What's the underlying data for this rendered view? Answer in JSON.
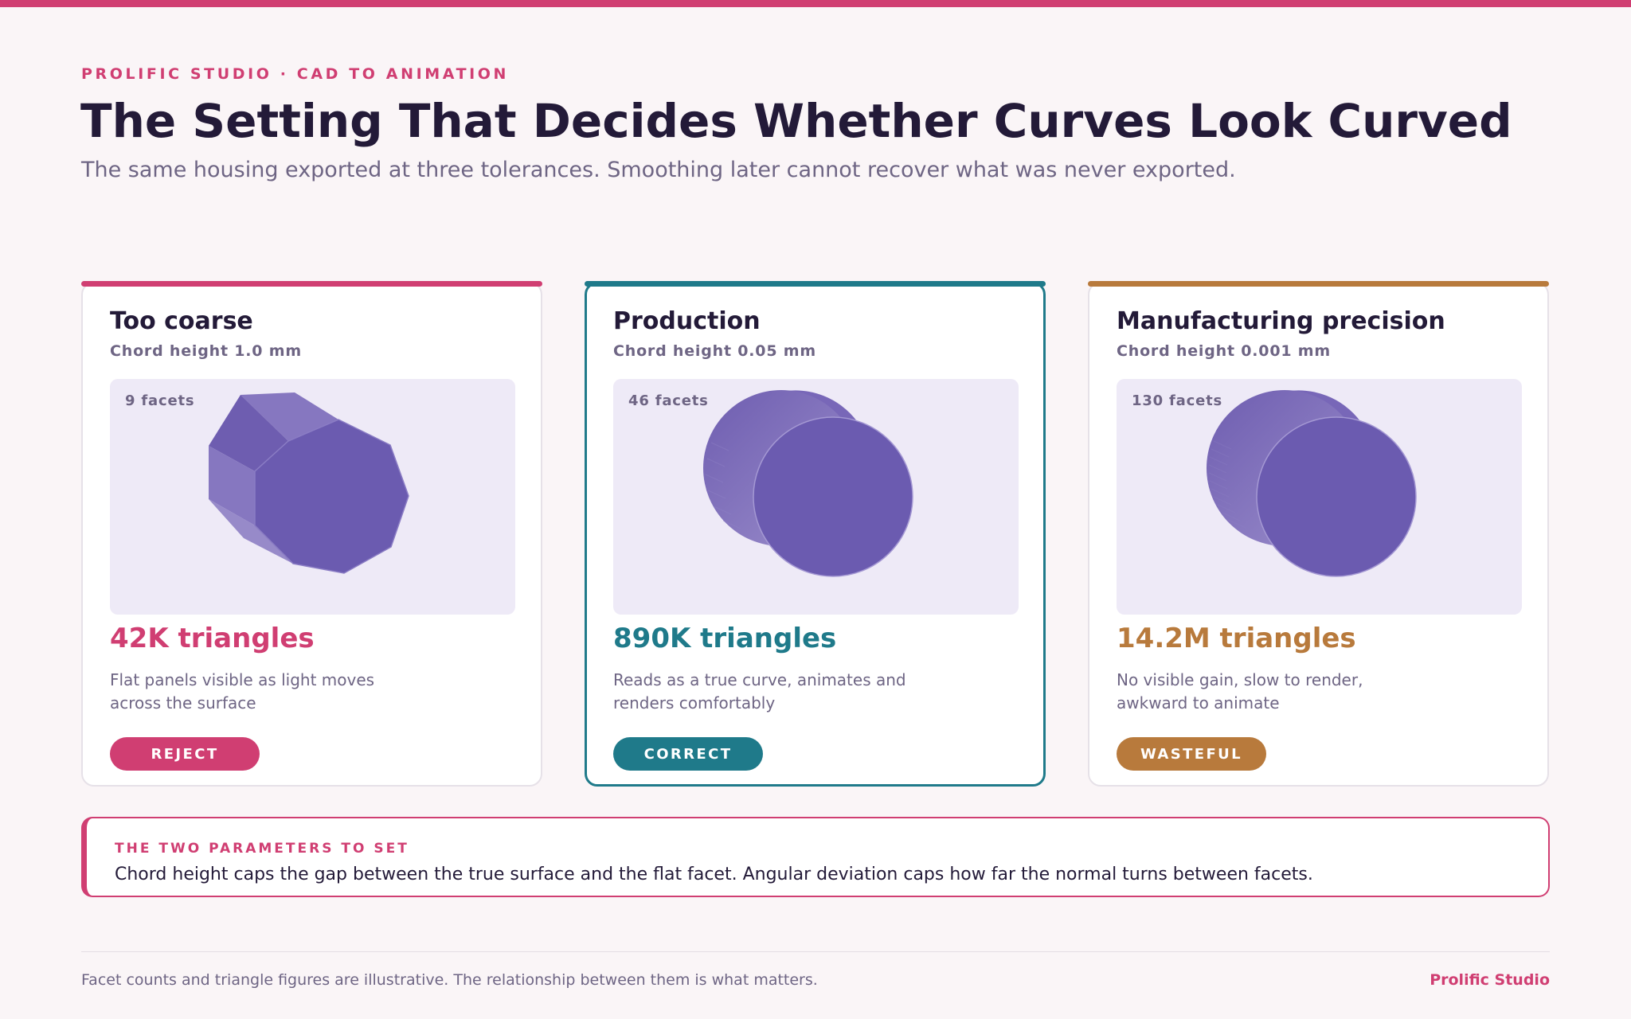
{
  "header": {
    "eyebrow": "PROLIFIC STUDIO · CAD TO ANIMATION",
    "title": "The Setting That Decides Whether Curves Look Curved",
    "subtitle": "The same housing exported at three tolerances. Smoothing later cannot recover what was never exported."
  },
  "cards": [
    {
      "title": "Too coarse",
      "chord": "Chord height 1.0 mm",
      "facets": "9 facets",
      "triangles": "42K triangles",
      "description": "Flat panels visible as light moves across the surface",
      "verdict": "REJECT",
      "color": "#d03e72"
    },
    {
      "title": "Production",
      "chord": "Chord height 0.05 mm",
      "facets": "46 facets",
      "triangles": "890K triangles",
      "description": "Reads as a true curve, animates and renders comfortably",
      "verdict": "CORRECT",
      "color": "#1f7a8a"
    },
    {
      "title": "Manufacturing precision",
      "chord": "Chord height 0.001 mm",
      "facets": "130 facets",
      "triangles": "14.2M triangles",
      "description": "No visible gain, slow to render, awkward to animate",
      "verdict": "WASTEFUL",
      "color": "#b87a3c"
    }
  ],
  "callout": {
    "label": "THE TWO PARAMETERS TO SET",
    "text": "Chord height caps the gap between the true surface and the flat facet. Angular deviation caps how far the normal turns between facets."
  },
  "footer": {
    "note": "Facet counts and triangle figures are illustrative. The relationship between them is what matters.",
    "brand": "Prolific Studio"
  },
  "colors": {
    "accent": "#d03e72",
    "production": "#1f7a8a",
    "precision": "#b87a3c",
    "shape": "#6e5db0",
    "viz_background": "#eeeaf7"
  }
}
